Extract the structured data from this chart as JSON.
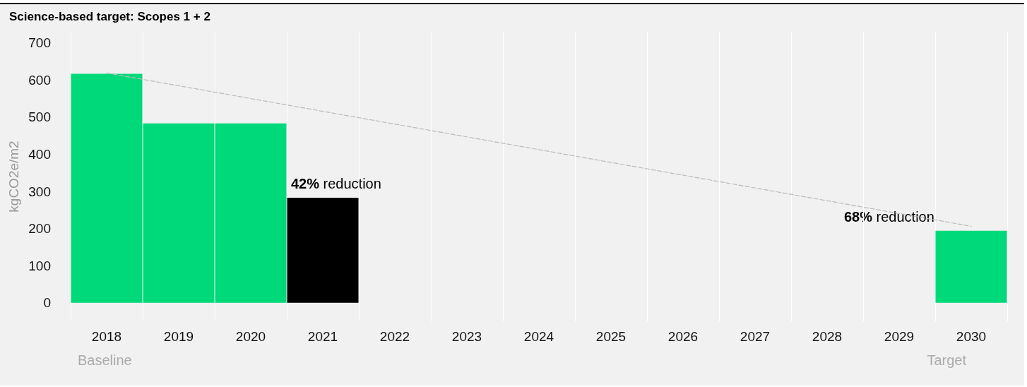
{
  "chart_data": {
    "type": "bar",
    "title": "Science-based target: Scopes 1 + 2",
    "ylabel": "kgCO2e/m2",
    "categories": [
      "2018",
      "2019",
      "2020",
      "2021",
      "2022",
      "2023",
      "2024",
      "2025",
      "2026",
      "2027",
      "2028",
      "2029",
      "2030"
    ],
    "series": [
      {
        "colors": [
          "#00d97a",
          "#00d97a",
          "#00d97a",
          "#000000",
          null,
          null,
          null,
          null,
          null,
          null,
          null,
          null,
          "#00d97a"
        ],
        "values": [
          617,
          483,
          483,
          283,
          null,
          null,
          null,
          null,
          null,
          null,
          null,
          null,
          194
        ]
      },
      {
        "type": "line",
        "color": "#bbbbbb",
        "line_style": "dashed",
        "marker": "none",
        "values": [
          619,
          null,
          null,
          null,
          null,
          null,
          null,
          null,
          null,
          null,
          null,
          null,
          206
        ]
      }
    ],
    "ylim": [
      -50,
      730
    ],
    "yticks": [
      0,
      100,
      200,
      300,
      400,
      500,
      600,
      700
    ],
    "grid": "x",
    "annotations": [
      {
        "text": "42% reduction",
        "x": "2021",
        "y": 283
      },
      {
        "text": "68% reduction",
        "x": "2030",
        "y": 194
      },
      "Baseline",
      "Target"
    ]
  }
}
